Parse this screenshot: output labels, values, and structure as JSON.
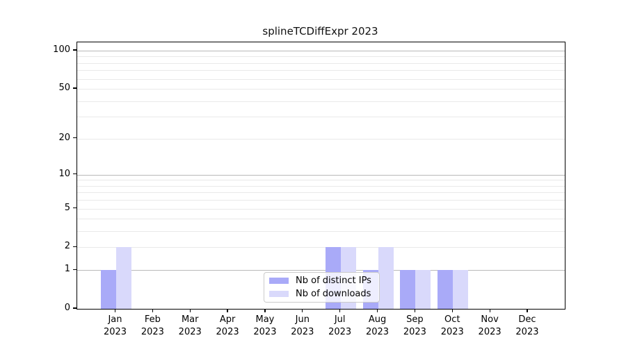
{
  "chart_data": {
    "type": "bar",
    "title": "splineTCDiffExpr 2023",
    "categories": [
      "Jan 2023",
      "Feb 2023",
      "Mar 2023",
      "Apr 2023",
      "May 2023",
      "Jun 2023",
      "Jul 2023",
      "Aug 2023",
      "Sep 2023",
      "Oct 2023",
      "Nov 2023",
      "Dec 2023"
    ],
    "series": [
      {
        "name": "Nb of distinct IPs",
        "color": "#a9aaf8",
        "values": [
          1,
          0,
          0,
          0,
          0,
          0,
          2,
          1,
          1,
          1,
          0,
          0
        ]
      },
      {
        "name": "Nb of downloads",
        "color": "#d9d9fb",
        "values": [
          2,
          0,
          0,
          0,
          0,
          0,
          2,
          2,
          1,
          1,
          0,
          0
        ]
      }
    ],
    "yscale": "log1p",
    "ylim": [
      0,
      117
    ],
    "ytick_values": [
      0,
      1,
      2,
      5,
      10,
      20,
      50,
      100
    ],
    "ytick_labels": [
      "0",
      "1",
      "2",
      "5",
      "10",
      "20",
      "50",
      "100"
    ],
    "major_gridlines": [
      1,
      10,
      100
    ],
    "minor_gridlines": [
      2,
      3,
      4,
      5,
      6,
      7,
      8,
      9,
      20,
      30,
      40,
      50,
      60,
      70,
      80,
      90
    ],
    "grid": true,
    "legend_position": "lower-center-inside",
    "colors": {
      "axis": "#000000",
      "major_grid": "#b9b9b9",
      "minor_grid": "#e9e9e9",
      "background": "#ffffff",
      "bar_distinct_ips": "#a9aaf8",
      "bar_downloads": "#d9d9fb"
    }
  }
}
